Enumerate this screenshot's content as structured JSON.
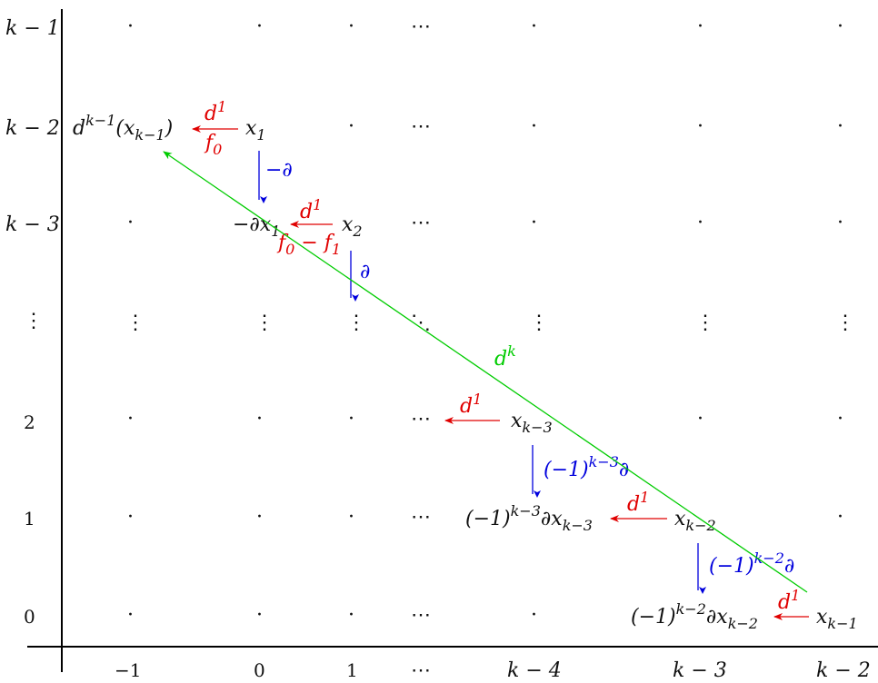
{
  "axes": {
    "y_labels": [
      "k − 1",
      "k − 2",
      "k − 3",
      "⋮",
      "2",
      "1",
      "0"
    ],
    "x_labels": [
      "−1",
      "0",
      "1",
      "⋯",
      "k − 4",
      "k − 3",
      "k − 2"
    ]
  },
  "placeholders": {
    "dot": "·",
    "hdots": "⋯",
    "vdots": "⋮",
    "ddots": "⋱"
  },
  "nodes": {
    "d_k_minus_1": "d",
    "d_k_minus_1_sup": "k−1",
    "d_k_minus_1_arg": "(x",
    "d_k_minus_1_arg_sub": "k−1",
    "d_k_minus_1_close": ")",
    "x1": "x",
    "x1_sub": "1",
    "neg_dx1": "−∂x",
    "neg_dx1_sub": "1",
    "x2": "x",
    "x2_sub": "2",
    "x_k3": "x",
    "x_k3_sub": "k−3",
    "minus1_k3_dx": "(−1)",
    "minus1_k3_dx_sup": "k−3",
    "minus1_k3_dx_tail": "∂x",
    "minus1_k3_dx_sub": "k−3",
    "x_k2": "x",
    "x_k2_sub": "k−2",
    "minus1_k2_dx": "(−1)",
    "minus1_k2_dx_sup": "k−2",
    "minus1_k2_dx_tail": "∂x",
    "minus1_k2_dx_sub": "k−2",
    "x_k1": "x",
    "x_k1_sub": "k−1"
  },
  "arrow_labels": {
    "d1": "d",
    "d1_sup": "1",
    "f0": "f",
    "f0_sub": "0",
    "f0_minus_f1": "f",
    "f0_minus_f1_sub0": "0",
    "f0_minus_f1_mid": " − f",
    "f0_minus_f1_sub1": "1",
    "neg_partial": "−∂",
    "partial": "∂",
    "sign_k3": "(−1)",
    "sign_k3_sup": "k−3",
    "sign_k3_tail": "∂",
    "sign_k2": "(−1)",
    "sign_k2_sup": "k−2",
    "sign_k2_tail": "∂",
    "dk": "d",
    "dk_sup": "k"
  },
  "colors": {
    "d1": "#e00000",
    "partial": "#0000dd",
    "dk": "#00cc00",
    "axis": "#000000"
  }
}
